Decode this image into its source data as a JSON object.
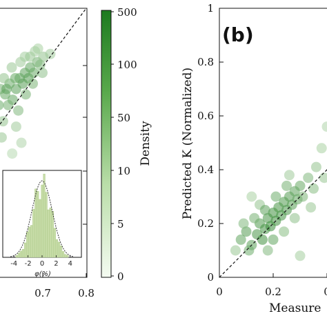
{
  "chart_data": [
    {
      "type": "scatter",
      "panel": "left",
      "x_ticks": [
        "0.7",
        "0.8"
      ],
      "xlim": [
        0.6,
        0.8
      ],
      "ylim": [
        0,
        1
      ],
      "diagonal": "dashed y=x",
      "density_points": [
        [
          0.604,
          0.7,
          30
        ],
        [
          0.615,
          0.68,
          50
        ],
        [
          0.625,
          0.72,
          40
        ],
        [
          0.632,
          0.66,
          60
        ],
        [
          0.64,
          0.7,
          80
        ],
        [
          0.648,
          0.74,
          60
        ],
        [
          0.655,
          0.72,
          100
        ],
        [
          0.66,
          0.76,
          70
        ],
        [
          0.668,
          0.74,
          90
        ],
        [
          0.672,
          0.78,
          60
        ],
        [
          0.68,
          0.76,
          50
        ],
        [
          0.688,
          0.8,
          30
        ],
        [
          0.695,
          0.79,
          20
        ],
        [
          0.702,
          0.82,
          10
        ],
        [
          0.612,
          0.74,
          10
        ],
        [
          0.63,
          0.78,
          8
        ],
        [
          0.65,
          0.8,
          6
        ],
        [
          0.6,
          0.64,
          40
        ],
        [
          0.622,
          0.64,
          30
        ],
        [
          0.645,
          0.62,
          20
        ],
        [
          0.66,
          0.82,
          5
        ],
        [
          0.69,
          0.85,
          4
        ],
        [
          0.61,
          0.58,
          10
        ],
        [
          0.64,
          0.56,
          6
        ],
        [
          0.672,
          0.82,
          8
        ],
        [
          0.683,
          0.84,
          5
        ],
        [
          0.662,
          0.68,
          30
        ],
        [
          0.678,
          0.72,
          25
        ],
        [
          0.652,
          0.5,
          3
        ],
        [
          0.631,
          0.46,
          2
        ],
        [
          0.607,
          0.52,
          8
        ],
        [
          0.718,
          0.83,
          6
        ],
        [
          0.7,
          0.76,
          12
        ],
        [
          0.638,
          0.74,
          50
        ],
        [
          0.618,
          0.7,
          70
        ]
      ],
      "inset": {
        "type": "histogram",
        "xlabel": "φ(%)",
        "x_ticks": [
          "-4",
          "-2",
          "0",
          "2",
          "4"
        ],
        "xlim": [
          -5,
          5
        ]
      }
    },
    {
      "type": "scatter",
      "panel": "right",
      "panel_label": "(b)",
      "ylabel": "Predicted K (Normalized)",
      "xlabel": "Measure",
      "y_ticks": [
        "0",
        "0.2",
        "0.4",
        "0.6",
        "0.8",
        "1"
      ],
      "x_ticks": [
        "0",
        "0.2",
        "0"
      ],
      "xlim": [
        0,
        1
      ],
      "ylim": [
        0,
        1
      ],
      "diagonal": "dashed y=x",
      "density_points": [
        [
          0.08,
          0.14,
          60
        ],
        [
          0.1,
          0.17,
          100
        ],
        [
          0.12,
          0.12,
          80
        ],
        [
          0.14,
          0.16,
          150
        ],
        [
          0.15,
          0.2,
          120
        ],
        [
          0.16,
          0.14,
          200
        ],
        [
          0.17,
          0.18,
          180
        ],
        [
          0.18,
          0.22,
          150
        ],
        [
          0.19,
          0.19,
          250
        ],
        [
          0.2,
          0.24,
          200
        ],
        [
          0.21,
          0.21,
          220
        ],
        [
          0.22,
          0.26,
          160
        ],
        [
          0.23,
          0.23,
          180
        ],
        [
          0.24,
          0.28,
          120
        ],
        [
          0.25,
          0.25,
          140
        ],
        [
          0.26,
          0.3,
          100
        ],
        [
          0.27,
          0.27,
          90
        ],
        [
          0.28,
          0.32,
          70
        ],
        [
          0.29,
          0.29,
          60
        ],
        [
          0.3,
          0.34,
          50
        ],
        [
          0.11,
          0.1,
          40
        ],
        [
          0.13,
          0.22,
          30
        ],
        [
          0.09,
          0.2,
          20
        ],
        [
          0.21,
          0.3,
          40
        ],
        [
          0.25,
          0.34,
          30
        ],
        [
          0.31,
          0.3,
          25
        ],
        [
          0.33,
          0.37,
          20
        ],
        [
          0.35,
          0.33,
          15
        ],
        [
          0.18,
          0.1,
          20
        ],
        [
          0.24,
          0.17,
          15
        ],
        [
          0.28,
          0.22,
          12
        ],
        [
          0.15,
          0.27,
          10
        ],
        [
          0.06,
          0.1,
          8
        ],
        [
          0.36,
          0.41,
          10
        ],
        [
          0.39,
          0.37,
          8
        ],
        [
          0.42,
          0.44,
          6
        ],
        [
          0.45,
          0.42,
          5
        ],
        [
          0.38,
          0.48,
          4
        ],
        [
          0.3,
          0.08,
          5
        ],
        [
          0.26,
          0.38,
          6
        ],
        [
          0.4,
          0.56,
          3
        ],
        [
          0.43,
          0.62,
          2
        ],
        [
          0.46,
          0.55,
          3
        ],
        [
          0.12,
          0.3,
          4
        ],
        [
          0.34,
          0.26,
          8
        ],
        [
          0.2,
          0.14,
          60
        ],
        [
          0.17,
          0.25,
          70
        ]
      ]
    }
  ],
  "colorbar": {
    "label": "Density",
    "ticks": [
      "500",
      "100",
      "50",
      "10",
      "5",
      "0"
    ],
    "range": [
      0,
      500
    ]
  }
}
